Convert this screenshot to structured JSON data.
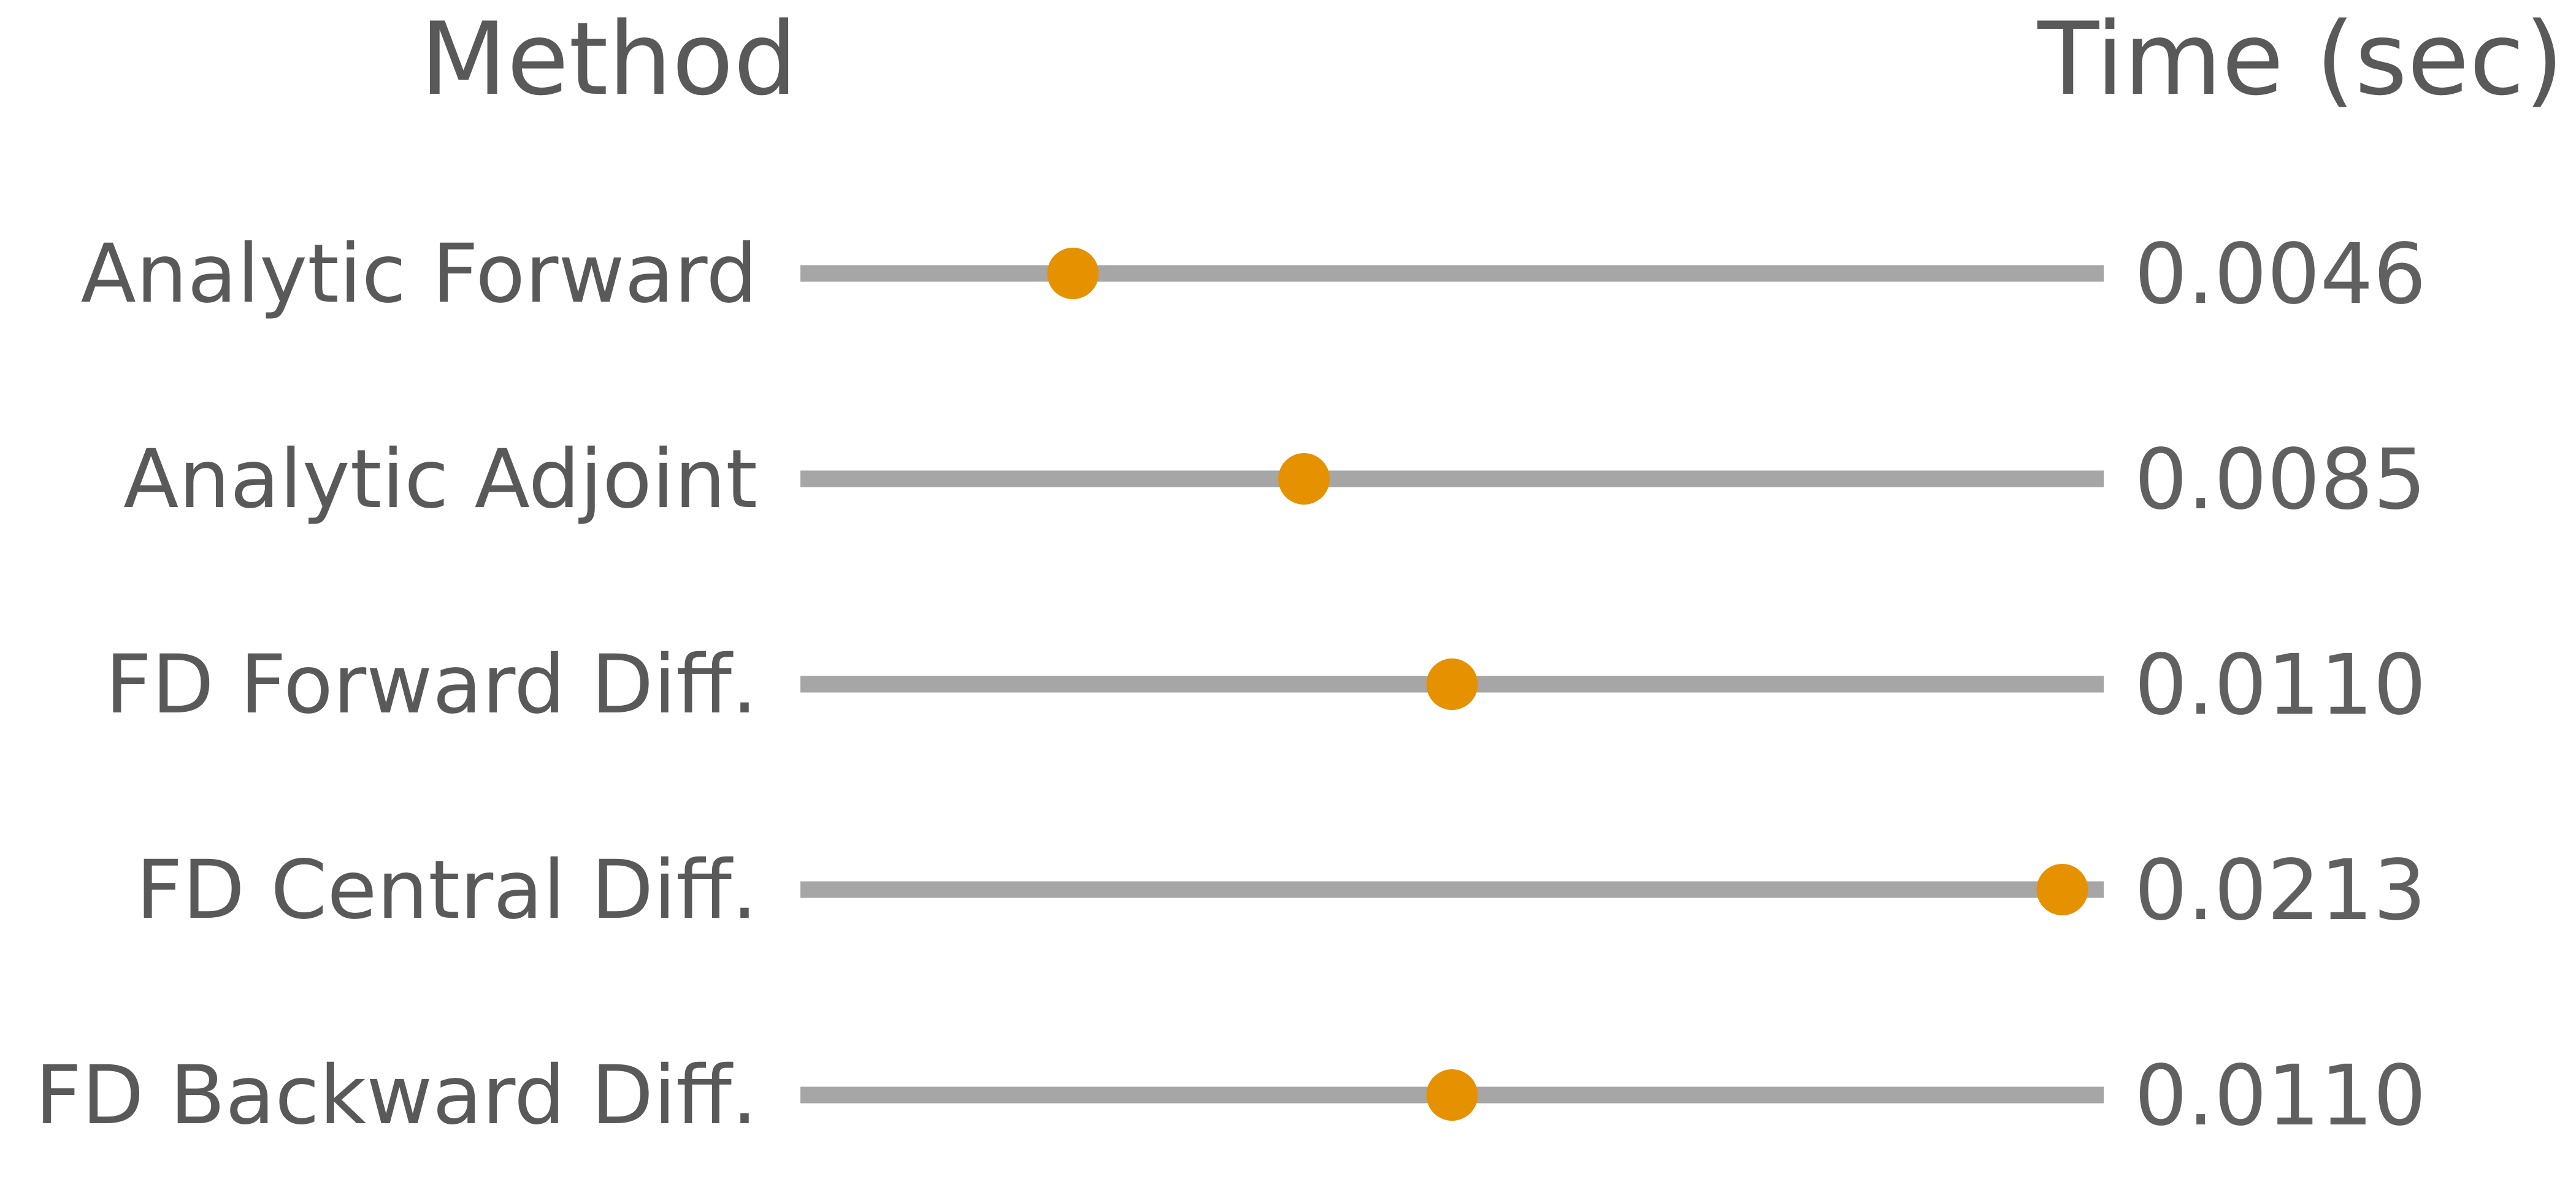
{
  "chart_data": {
    "type": "scatter",
    "title": "",
    "columns": {
      "method_header": "Method",
      "time_header": "Time (sec)"
    },
    "categories": [
      "Analytic Forward",
      "Analytic Adjoint",
      "FD Forward Diff.",
      "FD Central Diff.",
      "FD Backward Diff."
    ],
    "values": [
      0.0046,
      0.0085,
      0.011,
      0.0213,
      0.011
    ],
    "value_labels": [
      "0.0046",
      "0.0085",
      "0.0110",
      "0.0213",
      "0.0110"
    ],
    "xlim": [
      0,
      0.022
    ],
    "grid": false,
    "legend": "none",
    "colors": {
      "marker": "#e69100",
      "track": "#a6a6a6",
      "text": "#595959"
    }
  }
}
